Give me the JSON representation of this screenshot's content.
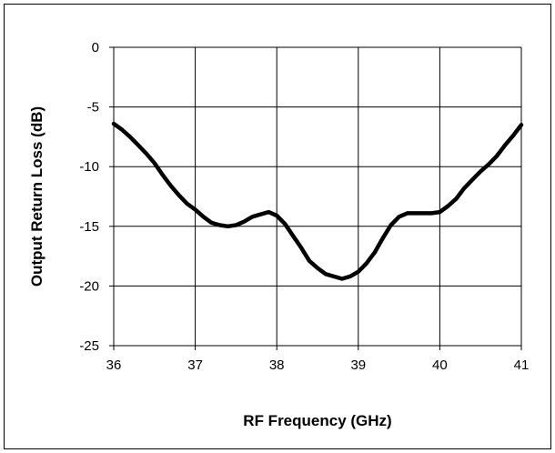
{
  "chart_data": {
    "type": "line",
    "title": "",
    "xlabel": "RF Frequency (GHz)",
    "ylabel": "Output Return Loss (dB)",
    "xlim": [
      36,
      41
    ],
    "ylim": [
      -25,
      0
    ],
    "x_ticks": [
      36,
      37,
      38,
      39,
      40,
      41
    ],
    "y_ticks": [
      0,
      -5,
      -10,
      -15,
      -20,
      -25
    ],
    "grid": true,
    "legend": "none",
    "series": [
      {
        "color": "#000000",
        "x": [
          36.0,
          36.1,
          36.2,
          36.3,
          36.4,
          36.5,
          36.6,
          36.7,
          36.8,
          36.9,
          37.0,
          37.1,
          37.2,
          37.3,
          37.4,
          37.5,
          37.6,
          37.7,
          37.8,
          37.9,
          38.0,
          38.1,
          38.2,
          38.3,
          38.4,
          38.5,
          38.6,
          38.7,
          38.8,
          38.9,
          39.0,
          39.1,
          39.2,
          39.3,
          39.4,
          39.5,
          39.6,
          39.7,
          39.8,
          39.9,
          40.0,
          40.1,
          40.2,
          40.3,
          40.4,
          40.5,
          40.6,
          40.7,
          40.8,
          40.9,
          41.0
        ],
        "y": [
          -6.4,
          -6.9,
          -7.5,
          -8.2,
          -8.9,
          -9.7,
          -10.7,
          -11.6,
          -12.4,
          -13.1,
          -13.6,
          -14.2,
          -14.7,
          -14.9,
          -15.0,
          -14.9,
          -14.6,
          -14.2,
          -14.0,
          -13.8,
          -14.1,
          -14.8,
          -15.8,
          -16.8,
          -17.9,
          -18.5,
          -19.0,
          -19.2,
          -19.4,
          -19.2,
          -18.8,
          -18.1,
          -17.2,
          -16.0,
          -14.9,
          -14.2,
          -13.9,
          -13.9,
          -13.9,
          -13.9,
          -13.8,
          -13.3,
          -12.7,
          -11.8,
          -11.1,
          -10.4,
          -9.8,
          -9.1,
          -8.2,
          -7.4,
          -6.5
        ]
      }
    ]
  }
}
